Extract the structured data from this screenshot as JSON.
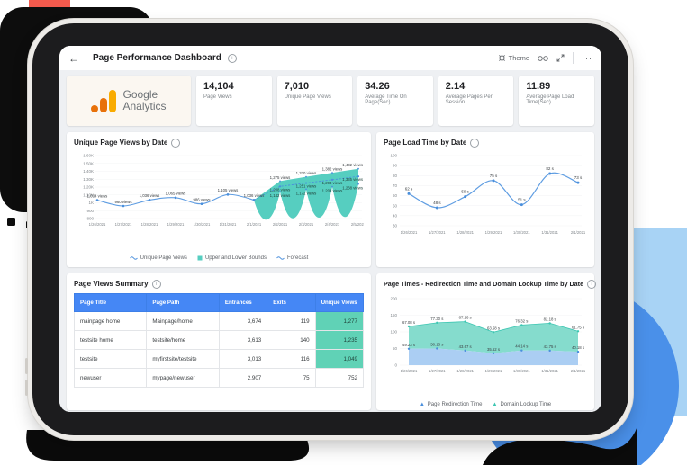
{
  "header": {
    "back_icon": "←",
    "title": "Page Performance Dashboard",
    "theme_label": "Theme",
    "more_icon": "···"
  },
  "logo": {
    "line1": "Google",
    "line2": "Analytics"
  },
  "kpis": [
    {
      "value": "14,104",
      "label": "Page Views"
    },
    {
      "value": "7,010",
      "label": "Unique Page Views"
    },
    {
      "value": "34.26",
      "label": "Average Time On Page(Sec)"
    },
    {
      "value": "2.14",
      "label": "Average Pages Per Session"
    },
    {
      "value": "11.89",
      "label": "Average Page Load Time(Sec)"
    }
  ],
  "colors": {
    "line_blue": "#5f9de2",
    "dot_blue": "#4a8fdc",
    "teal": "#56cec0",
    "table_header_blue": "#4587f5",
    "highlight_teal": "#60d2b6",
    "area_blue": "#abcef3",
    "area_teal": "#85dccd",
    "area_teal_edge": "#3cc6b2",
    "decor_circle_blue": "#4a90e9",
    "decor_light_blue": "#a8d3f5",
    "decor_red": "#f25a4d"
  },
  "chart_data": [
    {
      "type": "line",
      "title": "Unique Page Views by Date",
      "categories": [
        "1/26/2021",
        "1/27/2021",
        "1/28/2021",
        "1/29/2021",
        "1/30/2021",
        "1/31/2021",
        "2/1/2021",
        "2/2/2021",
        "2/3/2021",
        "2/4/2021",
        "2/5/2021"
      ],
      "ylim": [
        800,
        1600
      ],
      "yticks": [
        "1.60K",
        "1.50K",
        "1.40K",
        "1.30K",
        "1.20K",
        "1.10K",
        "1K",
        "900",
        "800"
      ],
      "ytick_values": [
        1600,
        1500,
        1400,
        1300,
        1200,
        1100,
        1000,
        900,
        800
      ],
      "series": [
        {
          "name": "Unique Page Views",
          "values": [
            1034,
            960,
            1036,
            1065,
            986,
            1105,
            1036
          ],
          "labels": [
            "1,034 views",
            "960 views",
            "1,036 views",
            "1,065 views",
            "986 views",
            "1,105 views",
            "1,036 views"
          ]
        },
        {
          "name": "Forecast",
          "values": [
            1208,
            1251,
            1293,
            1335
          ],
          "labels": [
            "1,208 views",
            "1,251 views",
            "1,293 views",
            "1,335 views"
          ]
        },
        {
          "name": "Upper Bound",
          "values": [
            1275,
            1330,
            1382,
            1432
          ],
          "labels": [
            "1,275 views",
            "1,330 views",
            "1,382 views",
            "1,432 views"
          ]
        },
        {
          "name": "Lower Bound",
          "values": [
            1142,
            1172,
            1204,
            1238
          ],
          "labels": [
            "1,142 views",
            "1,172 views",
            "1,204 views",
            "1,238 views"
          ]
        }
      ],
      "legend": [
        "Unique Page Views",
        "Upper and Lower Bounds",
        "Forecast"
      ]
    },
    {
      "type": "line",
      "title": "Page Load Time by Date",
      "categories": [
        "1/26/2021",
        "1/27/2021",
        "1/28/2021",
        "1/29/2021",
        "1/30/2021",
        "1/31/2021",
        "2/1/2021"
      ],
      "ylim": [
        30,
        100
      ],
      "ytick_values": [
        100,
        90,
        80,
        70,
        60,
        50,
        40,
        30
      ],
      "values": [
        62,
        48,
        59,
        75,
        51,
        82,
        73
      ],
      "labels": [
        "62 s",
        "48 s",
        "59 s",
        "75 s",
        "51 s",
        "82 s",
        "73 s"
      ]
    },
    {
      "type": "table",
      "title": "Page Views Summary",
      "columns": [
        "Page Title",
        "Page Path",
        "Entrances",
        "Exits",
        "Unique Views"
      ],
      "rows": [
        [
          "mainpage home",
          "Mainpage/home",
          "3,674",
          "119",
          "1,277"
        ],
        [
          "testsite home",
          "testsite/home",
          "3,613",
          "140",
          "1,235"
        ],
        [
          "testsite",
          "myfirstsite/testsite",
          "3,013",
          "116",
          "1,049"
        ],
        [
          "newuser",
          "mypage/newuser",
          "2,907",
          "75",
          "752"
        ]
      ],
      "highlight_rows": [
        0,
        1,
        2
      ]
    },
    {
      "type": "area",
      "title": "Page Times - Redirection Time and Domain Lookup Time by Date",
      "stacked": true,
      "categories": [
        "1/26/2021",
        "1/27/2021",
        "1/28/2021",
        "1/29/2021",
        "1/30/2021",
        "1/31/2021",
        "2/1/2021"
      ],
      "ylim": [
        0,
        200
      ],
      "ytick_values": [
        200,
        150,
        100,
        50,
        0
      ],
      "series": [
        {
          "name": "Page Redirection Time",
          "values": [
            49.23,
            50.13,
            43.67,
            35.62,
            44.14,
            43.75,
            40.18
          ],
          "labels": [
            "49.23 s",
            "50.13 s",
            "43.67 s",
            "35.62 s",
            "44.14 s",
            "43.75 s",
            "40.18 s"
          ]
        },
        {
          "name": "Domain Lookup Time",
          "values": [
            67.08,
            77.3,
            87.26,
            63.58,
            76.32,
            82.18,
            61.75
          ],
          "labels": [
            "67.08 s",
            "77.30 s",
            "87.26 s",
            "63.58 s",
            "76.32 s",
            "82.18 s",
            "61.75 s"
          ]
        }
      ],
      "legend": [
        "Page Redirection Time",
        "Domain Lookup Time"
      ]
    }
  ]
}
